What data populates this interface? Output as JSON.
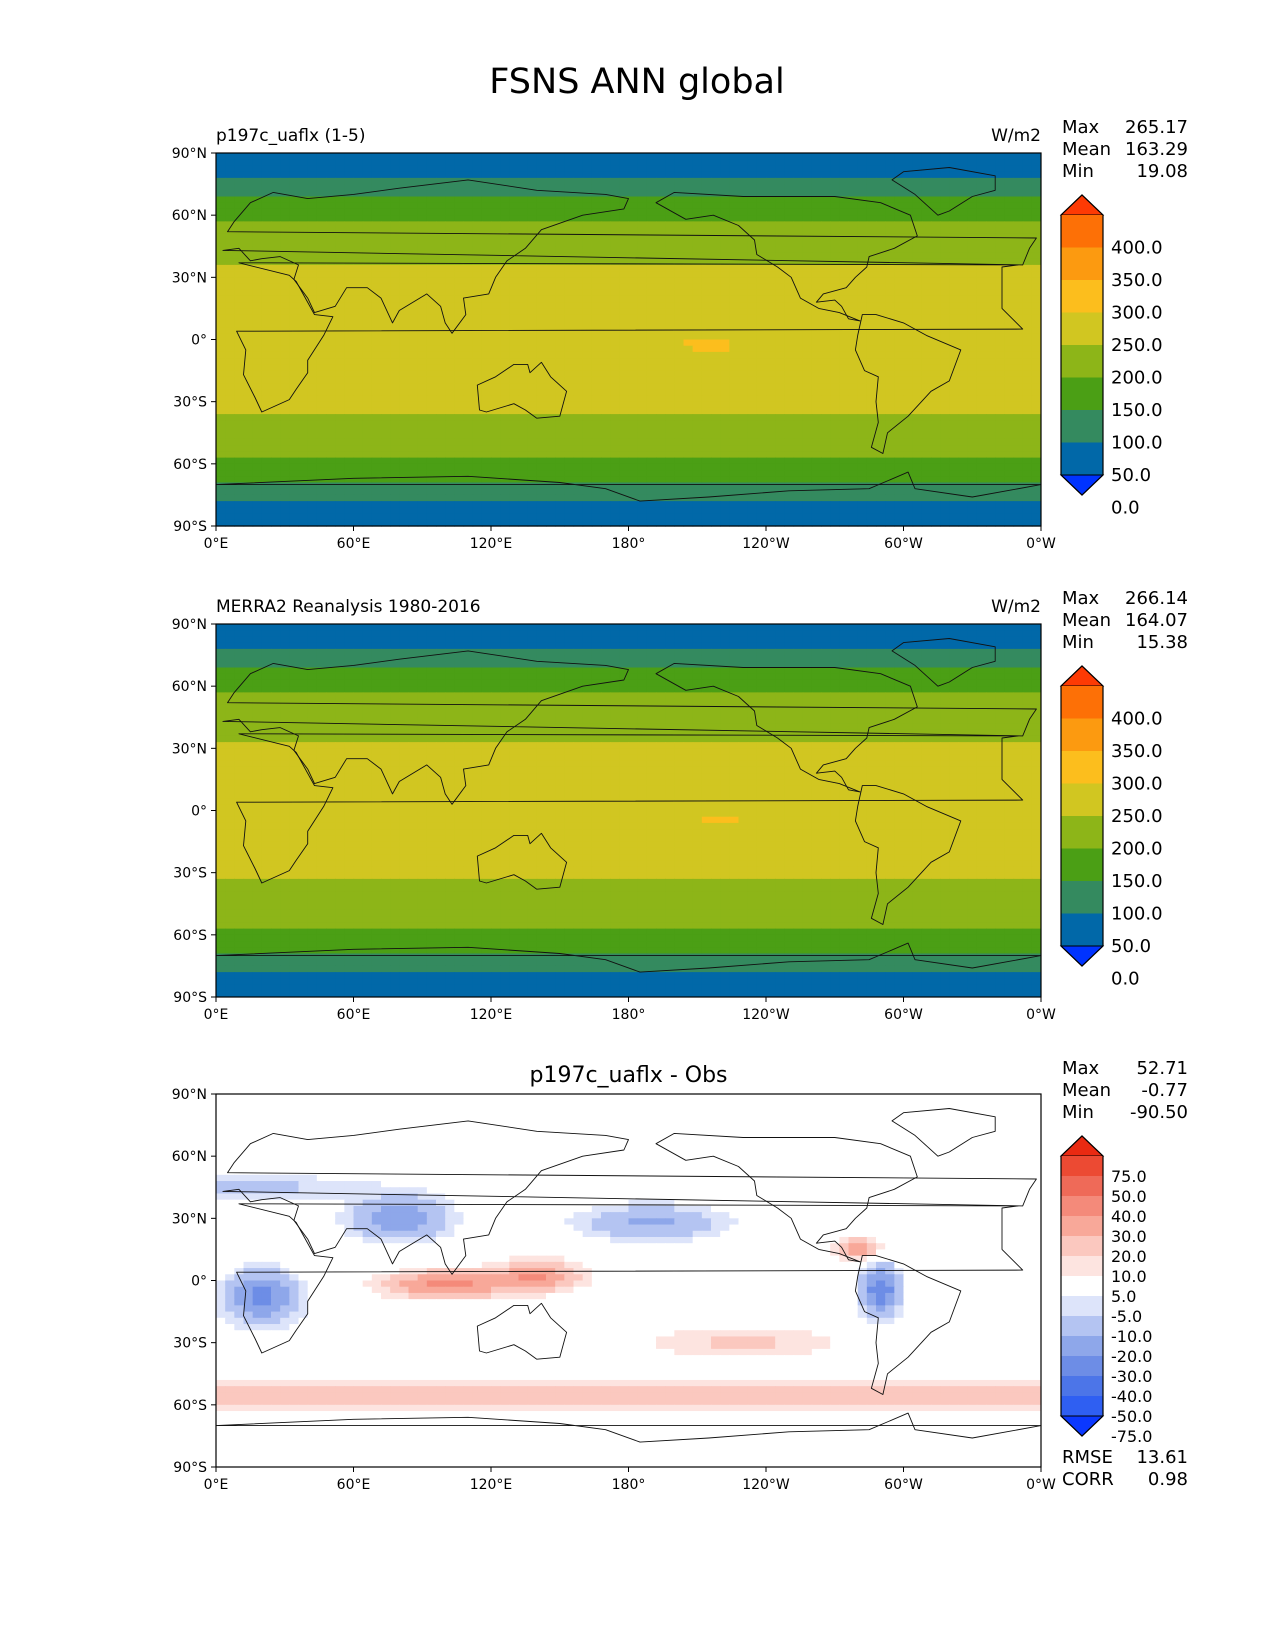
{
  "figure": {
    "title": "FSNS ANN global"
  },
  "chart_data": [
    {
      "type": "heatmap",
      "name": "model",
      "title_left": "p197c_uaflx (1-5)",
      "title_center": "",
      "units": "W/m2",
      "stats": {
        "max_label": "Max",
        "max": "265.17",
        "mean_label": "Mean",
        "mean": "163.29",
        "min_label": "Min",
        "min": "19.08"
      },
      "colorbar": {
        "levels": [
          "400.0",
          "350.0",
          "300.0",
          "250.0",
          "200.0",
          "150.0",
          "100.0",
          "50.0",
          "0.0"
        ],
        "colors": [
          "#0033ff",
          "#0168a8",
          "#348a5f",
          "#4b9f15",
          "#8db518",
          "#d1c621",
          "#fcbe1d",
          "#fc9a10",
          "#fd7006",
          "#fd3a04"
        ]
      },
      "xticks": [
        "0°E",
        "60°E",
        "120°E",
        "180°",
        "120°W",
        "60°W",
        "0°W"
      ],
      "yticks": [
        "90°N",
        "60°N",
        "30°N",
        "0°",
        "30°S",
        "60°S",
        "90°S"
      ],
      "xlim": [
        0,
        360
      ],
      "ylim": [
        -90,
        90
      ]
    },
    {
      "type": "heatmap",
      "name": "obs",
      "title_left": "MERRA2 Reanalysis 1980-2016",
      "title_center": "",
      "units": "W/m2",
      "stats": {
        "max_label": "Max",
        "max": "266.14",
        "mean_label": "Mean",
        "mean": "164.07",
        "min_label": "Min",
        "min": "15.38"
      },
      "colorbar": {
        "levels": [
          "400.0",
          "350.0",
          "300.0",
          "250.0",
          "200.0",
          "150.0",
          "100.0",
          "50.0",
          "0.0"
        ],
        "colors": [
          "#0033ff",
          "#0168a8",
          "#348a5f",
          "#4b9f15",
          "#8db518",
          "#d1c621",
          "#fcbe1d",
          "#fc9a10",
          "#fd7006",
          "#fd3a04"
        ]
      },
      "xticks": [
        "0°E",
        "60°E",
        "120°E",
        "180°",
        "120°W",
        "60°W",
        "0°W"
      ],
      "yticks": [
        "90°N",
        "60°N",
        "30°N",
        "0°",
        "30°S",
        "60°S",
        "90°S"
      ],
      "xlim": [
        0,
        360
      ],
      "ylim": [
        -90,
        90
      ]
    },
    {
      "type": "heatmap",
      "name": "diff",
      "title_left": "",
      "title_center": "p197c_uaflx - Obs",
      "units": "",
      "stats": {
        "max_label": "Max",
        "max": "52.71",
        "mean_label": "Mean",
        "mean": "-0.77",
        "min_label": "Min",
        "min": "-90.50"
      },
      "extra_stats": {
        "rmse_label": "RMSE",
        "rmse": "13.61",
        "corr_label": "CORR",
        "corr": "0.98"
      },
      "colorbar": {
        "levels": [
          "75.0",
          "50.0",
          "40.0",
          "30.0",
          "20.0",
          "10.0",
          "5.0",
          "-5.0",
          "-10.0",
          "-20.0",
          "-30.0",
          "-40.0",
          "-50.0",
          "-75.0"
        ],
        "colors": [
          "#0b38ff",
          "#2f5ff2",
          "#4c75e8",
          "#6d8de6",
          "#8ea7ea",
          "#b4c4f2",
          "#dde4fa",
          "#ffffff",
          "#fde4e0",
          "#fbc8bf",
          "#f8a899",
          "#f48a7a",
          "#ef6a58",
          "#ec4a33",
          "#ea2a12"
        ]
      },
      "xticks": [
        "0°E",
        "60°E",
        "120°E",
        "180°",
        "120°W",
        "60°W",
        "0°W"
      ],
      "yticks": [
        "90°N",
        "60°N",
        "30°N",
        "0°",
        "30°S",
        "60°S",
        "90°S"
      ],
      "xlim": [
        0,
        360
      ],
      "ylim": [
        -90,
        90
      ]
    }
  ]
}
